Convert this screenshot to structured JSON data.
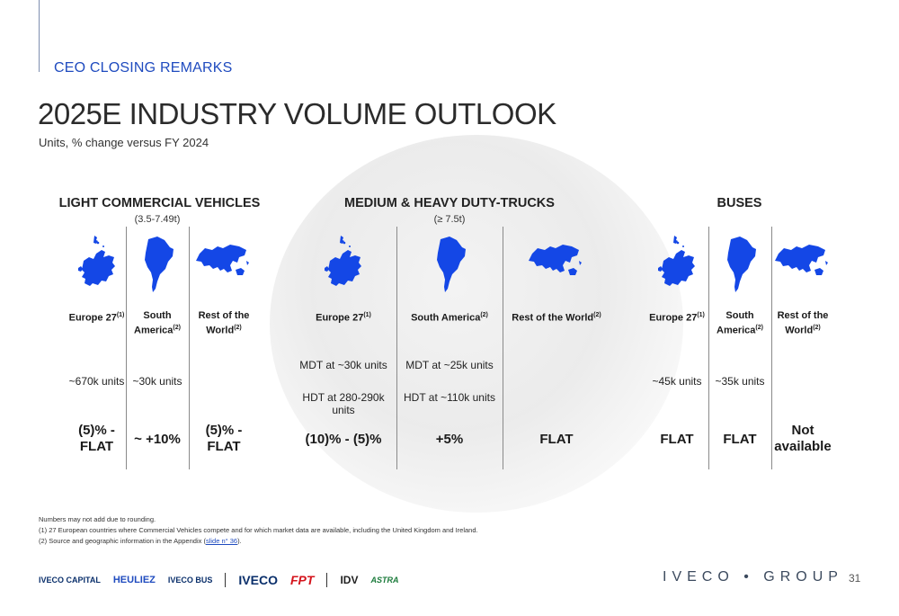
{
  "header": {
    "section": "CEO CLOSING REMARKS",
    "title": "2025E INDUSTRY VOLUME OUTLOOK",
    "subtitle": "Units, % change versus FY 2024"
  },
  "categories": [
    {
      "name": "LIGHT COMMERCIAL VEHICLES",
      "sub": "(3.5-7.49t)"
    },
    {
      "name": "MEDIUM & HEAVY DUTY-TRUCKS",
      "sub": "(≥ 7.5t)"
    },
    {
      "name": "BUSES",
      "sub": ""
    }
  ],
  "columns": [
    {
      "region": "Europe 27",
      "sup": "(1)",
      "map": "europe",
      "volumes": [
        "~670k units"
      ],
      "change": "(5)% - FLAT"
    },
    {
      "region": "South America",
      "sup": "(2)",
      "map": "south-america",
      "volumes": [
        "~30k units"
      ],
      "change": "~ +10%"
    },
    {
      "region": "Rest of the World",
      "sup": "(2)",
      "map": "world",
      "volumes": [],
      "change": "(5)% - FLAT"
    },
    {
      "region": "Europe 27",
      "sup": "(1)",
      "map": "europe",
      "volumes": [
        "MDT at ~30k units",
        "HDT at 280-290k units"
      ],
      "change": "(10)% - (5)%"
    },
    {
      "region": "South America",
      "sup": "(2)",
      "map": "south-america",
      "volumes": [
        "MDT at ~25k units",
        "HDT at ~110k units"
      ],
      "change": "+5%"
    },
    {
      "region": "Rest of the World",
      "sup": "(2)",
      "map": "world",
      "volumes": [],
      "change": "FLAT"
    },
    {
      "region": "Europe 27",
      "sup": "(1)",
      "map": "europe",
      "volumes": [
        "~45k units"
      ],
      "change": "FLAT"
    },
    {
      "region": "South America",
      "sup": "(2)",
      "map": "south-america",
      "volumes": [
        "~35k units"
      ],
      "change": "FLAT"
    },
    {
      "region": "Rest of the World",
      "sup": "(2)",
      "map": "world",
      "volumes": [],
      "change": "Not available"
    }
  ],
  "footnotes": {
    "n0": "Numbers may not add due to rounding.",
    "n1": "(1) 27 European countries where Commercial Vehicles compete and for which market data are available, including the United Kingdom and Ireland.",
    "n2_prefix": "(2) Source and geographic information in the Appendix (",
    "n2_link": "slide n° 36",
    "n2_suffix": ")."
  },
  "brands": [
    "IVECO CAPITAL",
    "HEULIEZ",
    "IVECO BUS",
    "IVECO",
    "FPT",
    "IDV",
    "ASTRA"
  ],
  "group_logo": "IVECO • GROUP",
  "page_number": "31",
  "colors": {
    "accent": "#1f4bbf",
    "map_fill": "#1447e6"
  }
}
